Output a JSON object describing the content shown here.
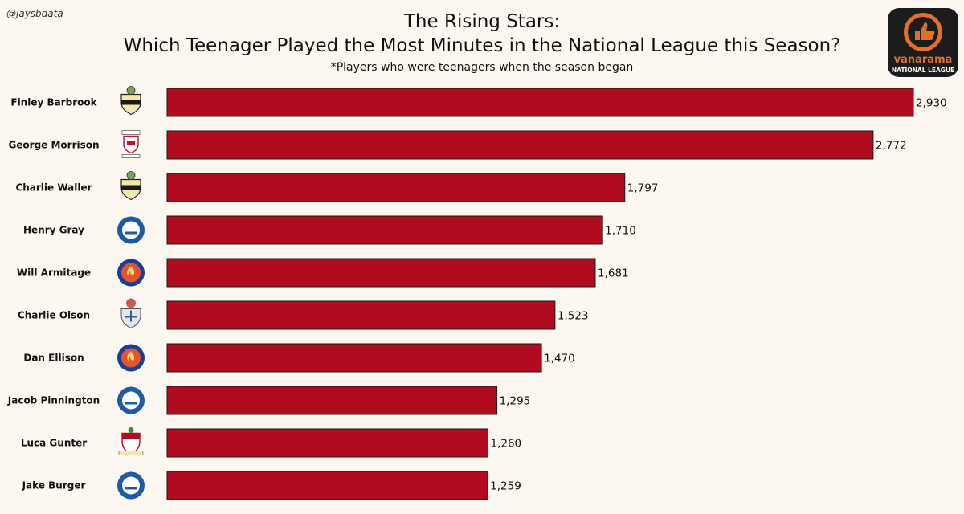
{
  "handle": "@jaysbdata",
  "title_line1": "The Rising Stars:",
  "title_line2": "Which Teenager Played the Most Minutes in the National League this Season?",
  "subtitle": "*Players who were teenagers when the season began",
  "logo": {
    "name": "vanarama",
    "subtitle": "NATIONAL LEAGUE",
    "color": "#e0702a"
  },
  "colors": {
    "bar": "#b00b1e",
    "bar_border": "#1a1a1a",
    "background": "#fcf8f1"
  },
  "chart_data": {
    "type": "bar",
    "orientation": "horizontal",
    "title": "The Rising Stars: Which Teenager Played the Most Minutes in the National League this Season?",
    "categories": [
      "Finley Barbrook",
      "George Morrison",
      "Charlie Waller",
      "Henry Gray",
      "Will Armitage",
      "Charlie Olson",
      "Dan Ellison",
      "Jacob Pinnington",
      "Luca Gunter",
      "Jake Burger"
    ],
    "values": [
      2930,
      2772,
      1797,
      1710,
      1681,
      1523,
      1470,
      1295,
      1260,
      1259
    ],
    "value_labels": [
      "2,930",
      "2,772",
      "1,797",
      "1,710",
      "1,681",
      "1,523",
      "1,470",
      "1,295",
      "1,260",
      "1,259"
    ],
    "badges": [
      "sutton-crest",
      "tamworth-crest",
      "sutton-crest",
      "blue-white-crest",
      "aldershot-phoenix-crest",
      "dorking-crest",
      "aldershot-phoenix-crest",
      "blue-white-crest",
      "red-white-crest",
      "blue-white-crest"
    ],
    "xlim": [
      0,
      2930
    ],
    "grid": false,
    "legend": "none"
  }
}
